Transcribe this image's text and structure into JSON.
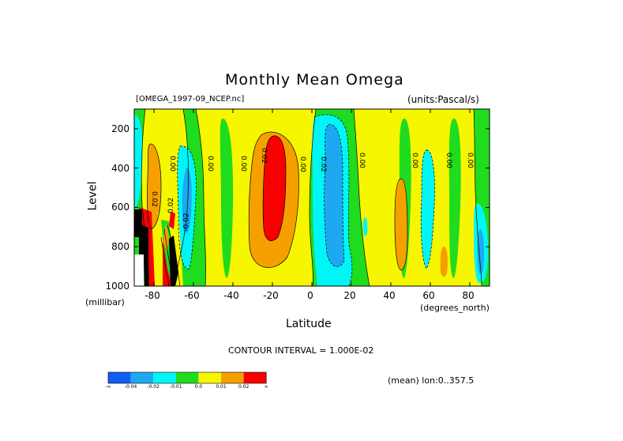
{
  "chart_data": {
    "type": "contour",
    "title": "Monthly Mean Omega",
    "dataset": "[OMEGA_1997-09_NCEP.nc]",
    "units": "(units:Pascal/s)",
    "xlabel": "Latitude",
    "x_units": "(degrees_north)",
    "ylabel": "Level",
    "y_units": "(millibar)",
    "xlim": [
      -90,
      90
    ],
    "ylim": [
      1000,
      100
    ],
    "y_inverted": true,
    "x_ticks": [
      "-80",
      "-60",
      "-40",
      "-20",
      "0",
      "20",
      "40",
      "60",
      "80"
    ],
    "y_ticks": [
      "200",
      "400",
      "600",
      "800",
      "1000"
    ],
    "contour_interval_text": "CONTOUR INTERVAL = 1.000E-02",
    "averaging_text": "(mean) lon:0..357.5",
    "contour_labels": [
      "0.02",
      "0.00",
      "0.00",
      "0.00",
      "0.02",
      "0.00",
      "0.02",
      "0.00",
      "0.00",
      "0.00",
      "0.00",
      "-0.02",
      "0.02"
    ],
    "colorbar": {
      "bins": [
        "#0f5ff6",
        "#1fa8f2",
        "#00f6f6",
        "#1fdc1f",
        "#f6f600",
        "#f6a000",
        "#f60000"
      ],
      "tick_labels": [
        "-∞",
        "-0.04",
        "-0.02",
        "-0.01",
        "0.0",
        "0.01",
        "0.02",
        "∞"
      ]
    },
    "features": [
      {
        "x": [
          -28,
          -12
        ],
        "y": [
          250,
          800
        ],
        "value_range": [
          0.01,
          "inf"
        ]
      },
      {
        "x": [
          0,
          25
        ],
        "y": [
          150,
          900
        ],
        "value_range": [
          "-inf",
          -0.01
        ]
      }
    ]
  }
}
